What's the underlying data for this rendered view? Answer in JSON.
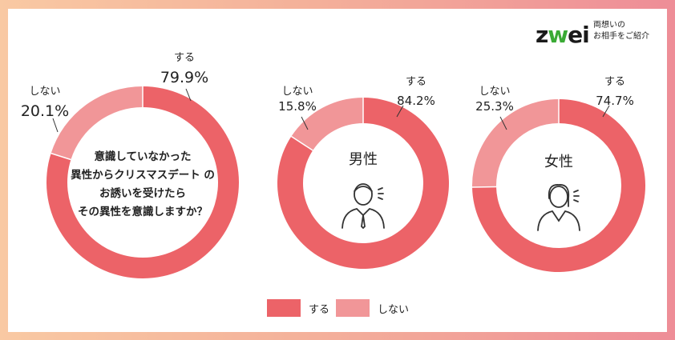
{
  "brand": {
    "logo_prefix": "z",
    "logo_mid": "w",
    "logo_suffix": "ei",
    "tagline_line1": "両想いの",
    "tagline_line2": "お相手をご紹介"
  },
  "colors": {
    "yes": "#ec6368",
    "no": "#f19698",
    "background_gradient_left": "#f9c9a3",
    "background_gradient_right": "#ee8d97",
    "icon": "#333333"
  },
  "chart_data": [
    {
      "type": "pie",
      "variant": "donut",
      "center_text": [
        "意識していなかった",
        "異性からクリスマスデート の",
        "お誘いを受けたら",
        "その異性を意識しますか？"
      ],
      "slices": [
        {
          "label": "する",
          "value": 79.9,
          "display": "79.9%"
        },
        {
          "label": "しない",
          "value": 20.1,
          "display": "20.1%"
        }
      ]
    },
    {
      "type": "pie",
      "variant": "donut",
      "center_text": [
        "男性"
      ],
      "center_icon": "man-icon",
      "slices": [
        {
          "label": "する",
          "value": 84.2,
          "display": "84.2%"
        },
        {
          "label": "しない",
          "value": 15.8,
          "display": "15.8%"
        }
      ]
    },
    {
      "type": "pie",
      "variant": "donut",
      "center_text": [
        "女性"
      ],
      "center_icon": "woman-icon",
      "slices": [
        {
          "label": "する",
          "value": 74.7,
          "display": "74.7%"
        },
        {
          "label": "しない",
          "value": 25.3,
          "display": "25.3%"
        }
      ]
    }
  ],
  "legend": [
    {
      "label": "する",
      "color_key": "yes"
    },
    {
      "label": "しない",
      "color_key": "no"
    }
  ]
}
